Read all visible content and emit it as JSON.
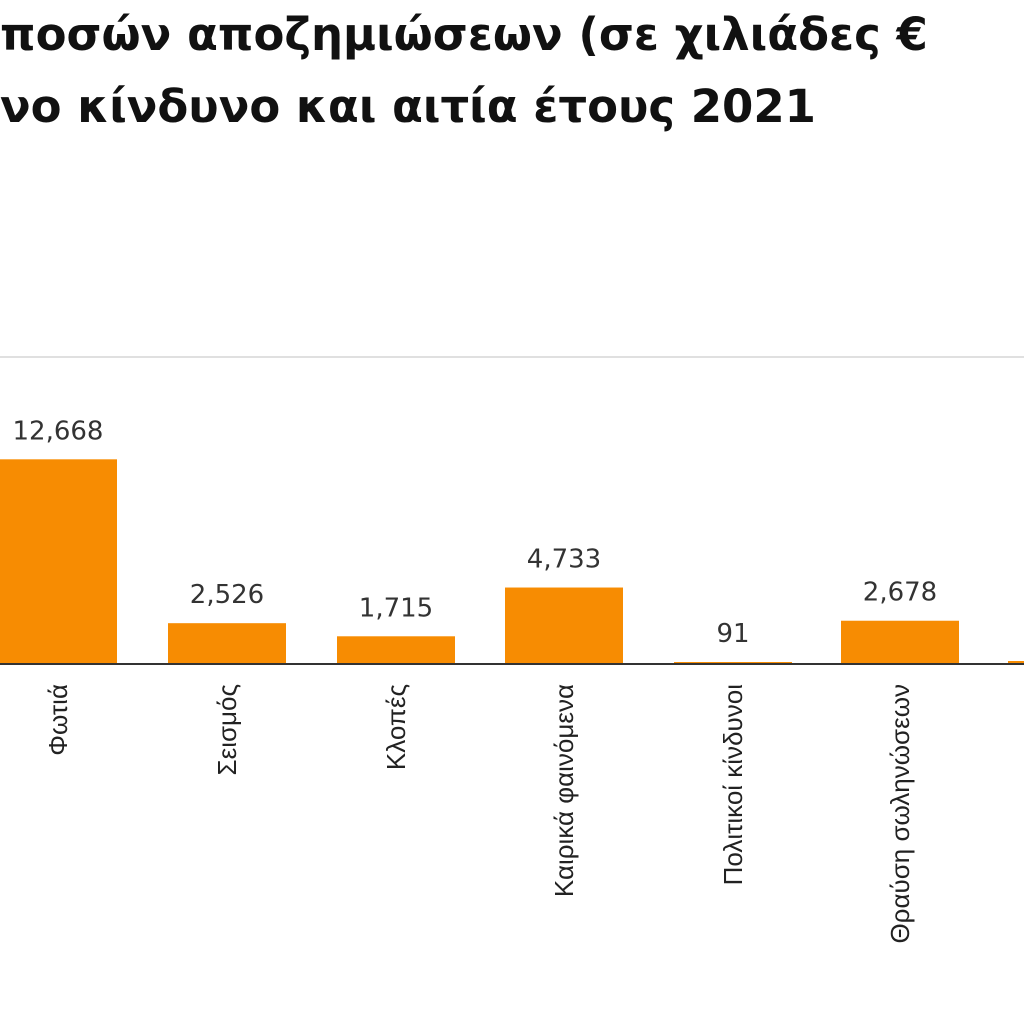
{
  "chart_data": {
    "type": "bar",
    "title_lines": [
      "ποσών αποζημιώσεων (σε χιλιάδες €",
      "νο κίνδυνο και αιτία έτους 2021"
    ],
    "categories": [
      "Φωτιά",
      "Σεισμός",
      "Κλοπές",
      "Καιρικά φαινόμενα",
      "Πολιτικοί κίνδυνοι",
      "Θραύση σωληνώσεων"
    ],
    "values": [
      12668,
      2526,
      1715,
      4733,
      91,
      2678
    ],
    "value_labels": [
      "12,668",
      "2,526",
      "1,715",
      "4,733",
      "91",
      "2,678"
    ],
    "ylim": [
      0,
      19000
    ],
    "grid": false,
    "bar_color": "#F78C02",
    "baseline_color": "#333333",
    "gridline_color": "#E0E0E0"
  }
}
